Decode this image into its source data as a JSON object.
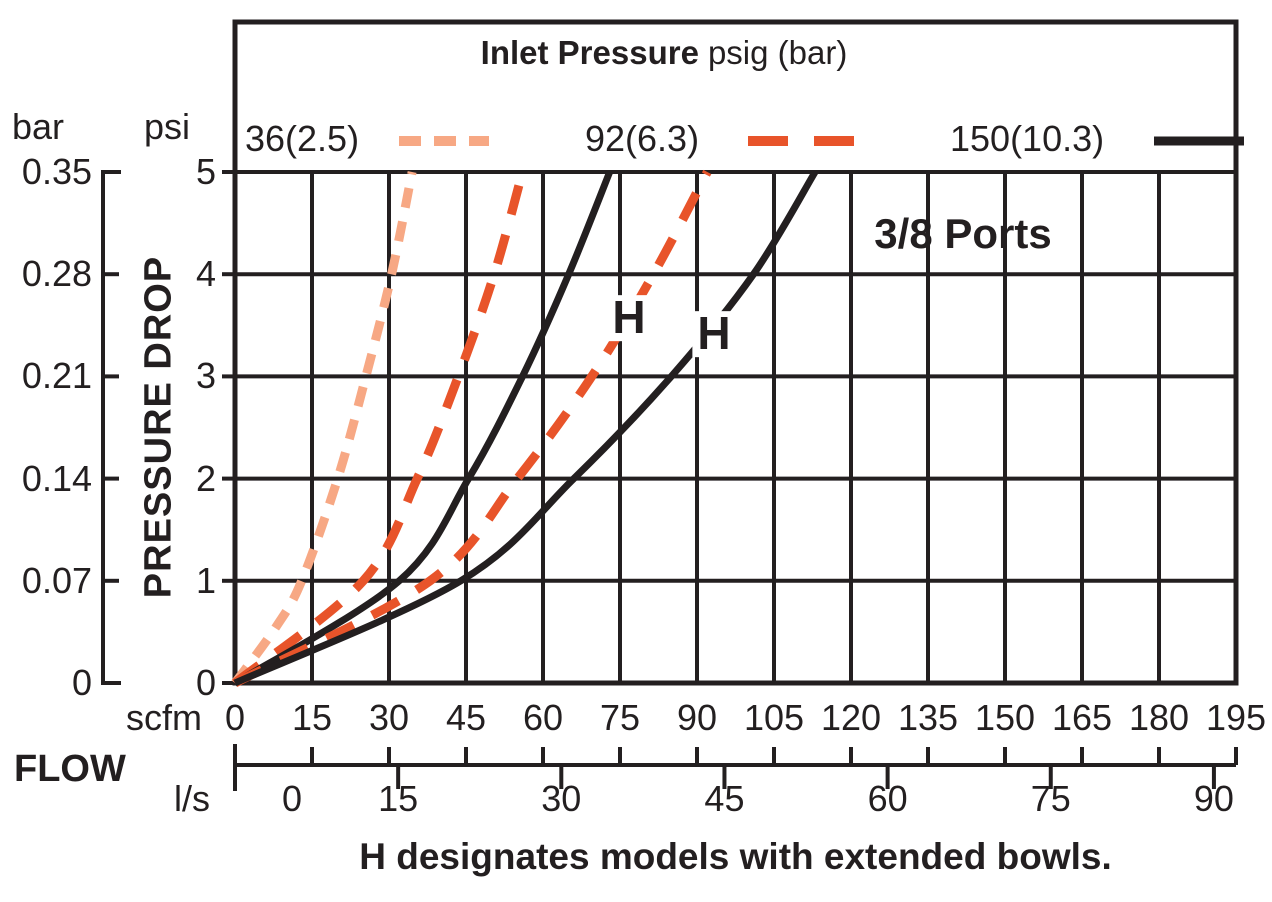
{
  "header": {
    "title_bold": "Inlet Pressure",
    "title_rest": "psig (bar)"
  },
  "legend": [
    {
      "label": "36(2.5)",
      "style": "dotted",
      "color": "#f7a884"
    },
    {
      "label": "92(6.3)",
      "style": "dashed",
      "color": "#e8542a"
    },
    {
      "label": "150(10.3)",
      "style": "solid",
      "color": "#231f20"
    }
  ],
  "annotation": "3/8 Ports",
  "caption": "H designates models with extended bowls.",
  "h_markers": [
    {
      "text": "H"
    },
    {
      "text": "H"
    }
  ],
  "axes": {
    "pressure": {
      "label": "PRESSURE DROP",
      "left_unit": "bar",
      "right_unit": "psi",
      "bar_ticks": [
        "0.35",
        "0.28",
        "0.21",
        "0.14",
        "0.07",
        "0"
      ],
      "psi_ticks": [
        "5",
        "4",
        "3",
        "2",
        "1",
        "0"
      ]
    },
    "flow": {
      "label": "FLOW",
      "top_unit": "scfm",
      "bottom_unit": "l/s",
      "scfm_ticks": [
        0,
        15,
        30,
        45,
        60,
        75,
        90,
        105,
        120,
        135,
        150,
        165,
        180,
        195
      ],
      "ls_ticks": [
        0,
        15,
        30,
        45,
        60,
        75,
        90
      ]
    }
  },
  "chart_data": {
    "type": "line",
    "title": "Inlet Pressure psig (bar)",
    "xlabel": "FLOW",
    "ylabel": "PRESSURE DROP",
    "x_units": [
      "scfm",
      "l/s"
    ],
    "y_units": [
      "psi",
      "bar"
    ],
    "x_range_scfm": [
      0,
      195
    ],
    "x_range_ls": [
      0,
      92
    ],
    "y_range_psi": [
      0,
      5
    ],
    "y_range_bar": [
      0,
      0.35
    ],
    "grid": "on",
    "legend_position": "top",
    "port_size": "3/8 Ports",
    "series": [
      {
        "name": "36(2.5)",
        "inlet_psig": 36,
        "inlet_bar": 2.5,
        "model": "standard",
        "style": "dotted",
        "color": "#f7a884",
        "points_scfm_psi": [
          [
            0,
            0
          ],
          [
            8,
            0.55
          ],
          [
            13,
            1
          ],
          [
            20,
            2
          ],
          [
            25.5,
            3
          ],
          [
            30.5,
            4
          ],
          [
            34.5,
            5
          ]
        ]
      },
      {
        "name": "92(6.3)",
        "inlet_psig": 92,
        "inlet_bar": 6.3,
        "model": "standard",
        "style": "dashed",
        "color": "#e8542a",
        "points_scfm_psi": [
          [
            0,
            0
          ],
          [
            25,
            1
          ],
          [
            35.5,
            2
          ],
          [
            43.5,
            3
          ],
          [
            50.5,
            4
          ],
          [
            56,
            5
          ]
        ]
      },
      {
        "name": "150(10.3)",
        "inlet_psig": 150,
        "inlet_bar": 10.3,
        "model": "standard",
        "style": "solid",
        "color": "#231f20",
        "points_scfm_psi": [
          [
            0,
            0
          ],
          [
            32,
            1
          ],
          [
            45.5,
            2
          ],
          [
            56,
            3
          ],
          [
            65,
            4
          ],
          [
            73,
            5
          ]
        ]
      },
      {
        "name": "92(6.3) H",
        "inlet_psig": 92,
        "inlet_bar": 6.3,
        "model": "H",
        "style": "dashed",
        "color": "#e8542a",
        "points_scfm_psi": [
          [
            0,
            0
          ],
          [
            38,
            1
          ],
          [
            55,
            2
          ],
          [
            69.5,
            3
          ],
          [
            81.5,
            4
          ],
          [
            92,
            5
          ]
        ]
      },
      {
        "name": "150(10.3) H",
        "inlet_psig": 150,
        "inlet_bar": 10.3,
        "model": "H",
        "style": "solid",
        "color": "#231f20",
        "points_scfm_psi": [
          [
            0,
            0
          ],
          [
            44,
            1
          ],
          [
            66,
            2
          ],
          [
            85,
            3
          ],
          [
            101,
            4
          ],
          [
            113,
            5
          ]
        ]
      }
    ]
  }
}
